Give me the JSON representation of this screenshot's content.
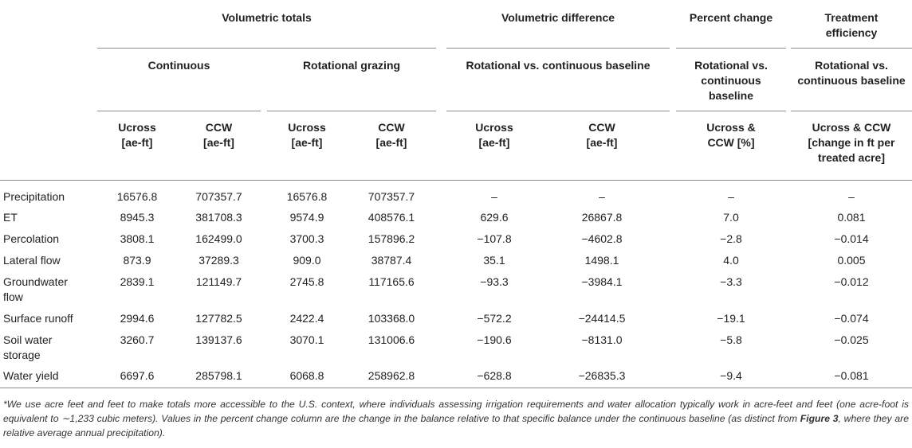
{
  "header": {
    "groups": {
      "volumetric_totals": "Volumetric totals",
      "volumetric_difference": "Volumetric difference",
      "percent_change": "Percent change",
      "treatment_efficiency_1": "Treatment",
      "treatment_efficiency_2": "efficiency"
    },
    "subgroups": {
      "continuous": "Continuous",
      "rotational": "Rotational grazing",
      "rot_vs_cont": "Rotational vs. continuous baseline",
      "pc_line1": "Rotational vs.",
      "pc_line2": "continuous",
      "pc_line3": "baseline",
      "te_line1": "Rotational vs.",
      "te_line2": "continuous baseline"
    },
    "columns": [
      {
        "l1": "Ucross",
        "l2": "[ae-ft]"
      },
      {
        "l1": "CCW",
        "l2": "[ae-ft]"
      },
      {
        "l1": "Ucross",
        "l2": "[ae-ft]"
      },
      {
        "l1": "CCW",
        "l2": "[ae-ft]"
      },
      {
        "l1": "Ucross",
        "l2": "[ae-ft]"
      },
      {
        "l1": "CCW",
        "l2": "[ae-ft]"
      },
      {
        "l1": "Ucross &",
        "l2": "CCW [%]"
      },
      {
        "l1": "Ucross & CCW",
        "l2": "[change in ft per",
        "l3": "treated acre]"
      }
    ]
  },
  "rows": [
    {
      "label": [
        "Precipitation"
      ],
      "values": [
        "16576.8",
        "707357.7",
        "16576.8",
        "707357.7",
        "–",
        "–",
        "–",
        "–"
      ]
    },
    {
      "label": [
        "ET"
      ],
      "values": [
        "8945.3",
        "381708.3",
        "9574.9",
        "408576.1",
        "629.6",
        "26867.8",
        "7.0",
        "0.081"
      ]
    },
    {
      "label": [
        "Percolation"
      ],
      "values": [
        "3808.1",
        "162499.0",
        "3700.3",
        "157896.2",
        "−107.8",
        "−4602.8",
        "−2.8",
        "−0.014"
      ]
    },
    {
      "label": [
        "Lateral flow"
      ],
      "values": [
        "873.9",
        "37289.3",
        "909.0",
        "38787.4",
        "35.1",
        "1498.1",
        "4.0",
        "0.005"
      ]
    },
    {
      "label": [
        "Groundwater",
        "flow"
      ],
      "values": [
        "2839.1",
        "121149.7",
        "2745.8",
        "117165.6",
        "−93.3",
        "−3984.1",
        "−3.3",
        "−0.012"
      ]
    },
    {
      "label": [
        "Surface runoff"
      ],
      "values": [
        "2994.6",
        "127782.5",
        "2422.4",
        "103368.0",
        "−572.2",
        "−24414.5",
        "−19.1",
        "−0.074"
      ]
    },
    {
      "label": [
        "Soil water",
        "storage"
      ],
      "values": [
        "3260.7",
        "139137.6",
        "3070.1",
        "131006.6",
        "−190.6",
        "−8131.0",
        "−5.8",
        "−0.025"
      ]
    },
    {
      "label": [
        "Water yield"
      ],
      "values": [
        "6697.6",
        "285798.1",
        "6068.8",
        "258962.8",
        "−628.8",
        "−26835.3",
        "−9.4",
        "−0.081"
      ]
    }
  ],
  "footnote": {
    "part1": "*We use acre feet and feet to make totals more accessible to the U.S. context, where individuals assessing irrigation requirements and water allocation typically work in acre-feet and feet (one acre-foot is equivalent to ∼1,233 cubic meters). Values in the percent change column are the change in the balance relative to that specific balance under the continuous baseline (as distinct from ",
    "figure_ref": "Figure 3",
    "part2": ", where they are relative average annual precipitation)."
  }
}
